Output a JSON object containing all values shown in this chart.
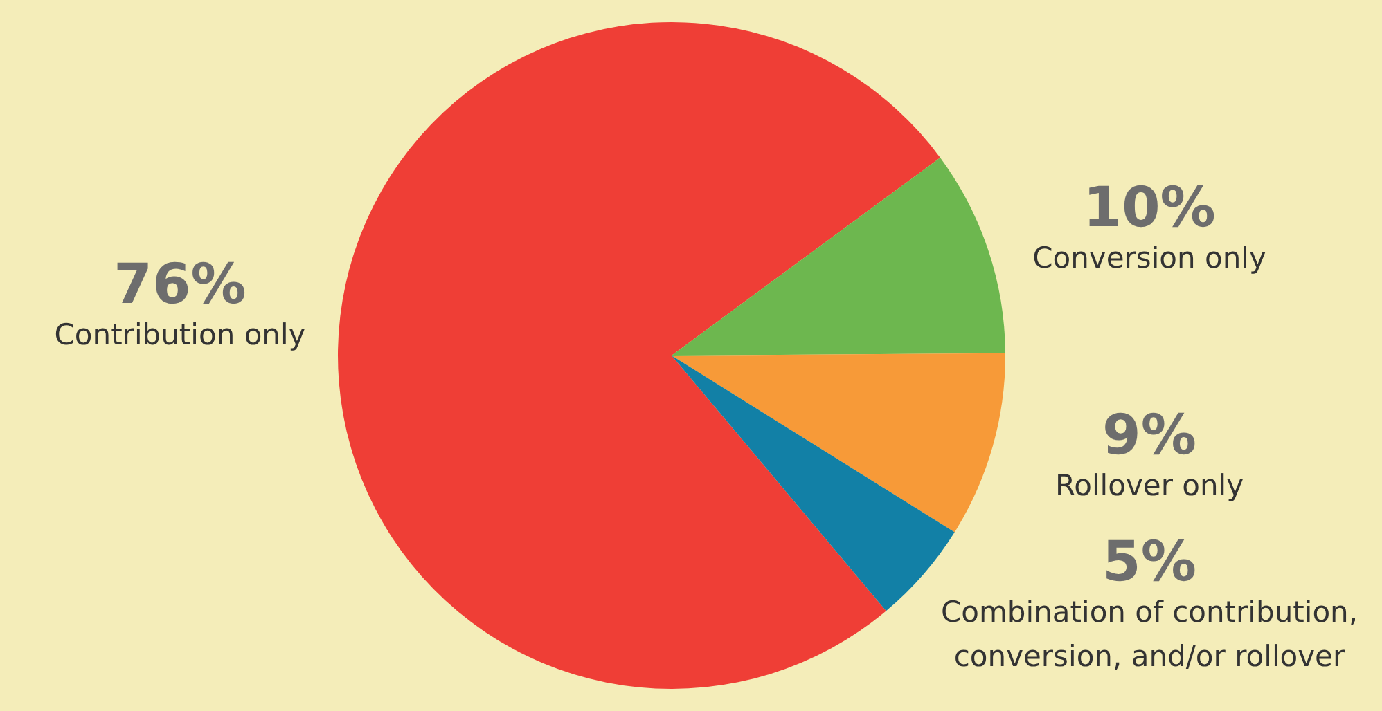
{
  "chart_data": {
    "type": "pie",
    "categories": [
      "Contribution only",
      "Conversion only",
      "Rollover only",
      "Combination of contribution, conversion, and/or rollover"
    ],
    "values": [
      76,
      10,
      9,
      5
    ],
    "value_labels": [
      "76%",
      "10%",
      "9%",
      "5%"
    ],
    "colors": [
      "#ef3e36",
      "#6db74f",
      "#f79a38",
      "#1280a6"
    ]
  }
}
